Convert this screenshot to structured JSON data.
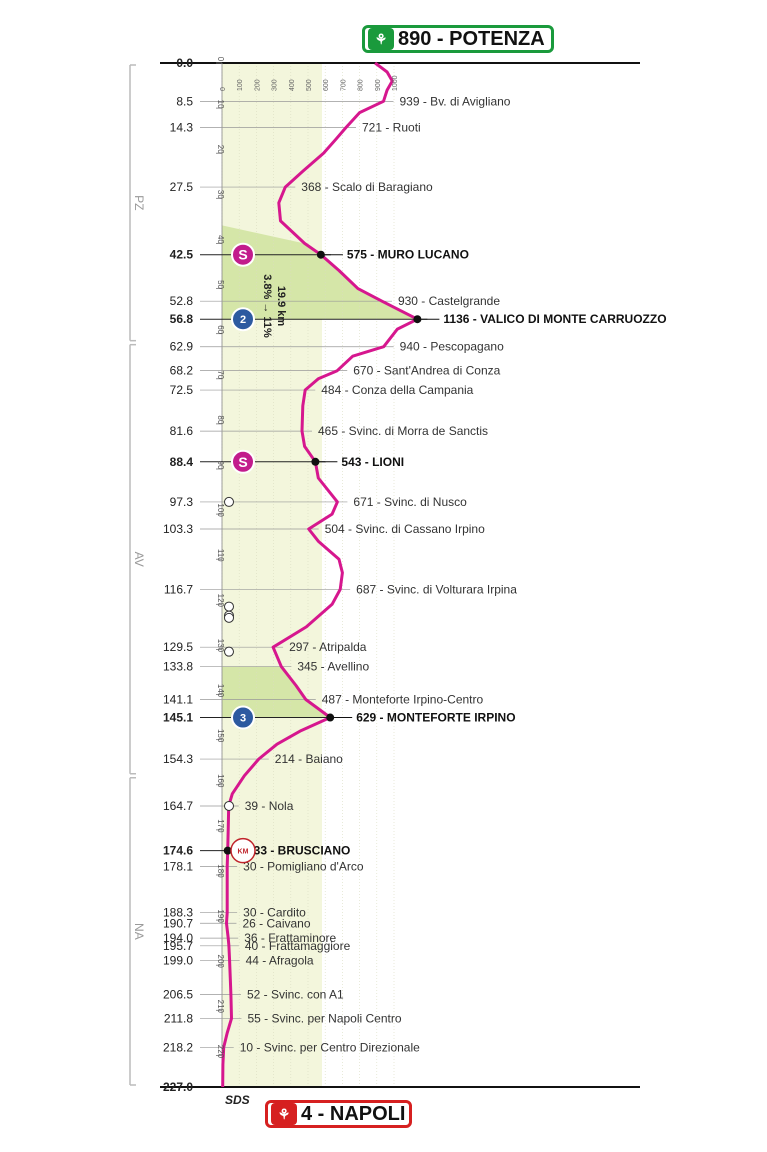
{
  "start_badge": {
    "label": "890 - POTENZA",
    "color": "#1a9a3c",
    "icon": "rider-icon"
  },
  "finish_badge": {
    "label": "4 - NAPOLI",
    "color": "#d62020",
    "icon": "rider-icon"
  },
  "sds_label": "SDS",
  "climb_annotation": {
    "length": "19.9 km",
    "gradient": "3.8% → 11%"
  },
  "colors": {
    "profile": "#d6178e",
    "background": "#f3f6dc",
    "climb_shade": "#d5e6a8",
    "sprint": "#c21c8c",
    "kom": "#2d5aa0"
  },
  "chart_data": {
    "type": "area",
    "orientation": "vertical",
    "x_label": "",
    "y_label": "",
    "km_axis_range": [
      0,
      227
    ],
    "altitude_axis_range": [
      0,
      1000
    ],
    "altitude_ticks": [
      "0",
      "100",
      "200",
      "300",
      "400",
      "500",
      "600",
      "700",
      "800",
      "900",
      "1000"
    ],
    "km_ticks": [
      "0",
      "10",
      "20",
      "30",
      "40",
      "50",
      "60",
      "70",
      "80",
      "90",
      "100",
      "110",
      "120",
      "130",
      "140",
      "150",
      "160",
      "170",
      "180",
      "190",
      "200",
      "210",
      "220"
    ],
    "regions": [
      {
        "name": "PZ",
        "from_km": 0,
        "to_km": 62
      },
      {
        "name": "AV",
        "from_km": 62,
        "to_km": 158
      },
      {
        "name": "NA",
        "from_km": 158,
        "to_km": 227
      }
    ],
    "climb_zones": [
      {
        "from_km": 36,
        "to_km": 56.8
      },
      {
        "from_km": 133.8,
        "to_km": 145.1
      }
    ],
    "profile": [
      [
        0,
        890
      ],
      [
        2,
        960
      ],
      [
        4,
        990
      ],
      [
        6,
        960
      ],
      [
        8.5,
        939
      ],
      [
        11,
        800
      ],
      [
        14.3,
        721
      ],
      [
        17,
        660
      ],
      [
        20,
        590
      ],
      [
        24,
        470
      ],
      [
        27.5,
        368
      ],
      [
        31,
        330
      ],
      [
        35,
        340
      ],
      [
        40,
        480
      ],
      [
        42.5,
        575
      ],
      [
        46,
        680
      ],
      [
        50,
        790
      ],
      [
        52.8,
        930
      ],
      [
        56.8,
        1136
      ],
      [
        59,
        1020
      ],
      [
        62.9,
        940
      ],
      [
        65,
        760
      ],
      [
        68.2,
        670
      ],
      [
        70,
        560
      ],
      [
        72.5,
        484
      ],
      [
        76,
        470
      ],
      [
        81.6,
        465
      ],
      [
        85,
        480
      ],
      [
        88.4,
        543
      ],
      [
        92,
        560
      ],
      [
        97.3,
        671
      ],
      [
        100,
        640
      ],
      [
        103.3,
        504
      ],
      [
        106,
        560
      ],
      [
        110,
        680
      ],
      [
        113,
        700
      ],
      [
        116.7,
        687
      ],
      [
        120,
        640
      ],
      [
        125,
        490
      ],
      [
        129.5,
        297
      ],
      [
        133.8,
        345
      ],
      [
        138,
        430
      ],
      [
        141.1,
        487
      ],
      [
        145.1,
        629
      ],
      [
        148,
        460
      ],
      [
        151,
        320
      ],
      [
        154.3,
        214
      ],
      [
        158,
        130
      ],
      [
        162,
        60
      ],
      [
        164.7,
        39
      ],
      [
        170,
        36
      ],
      [
        174.6,
        33
      ],
      [
        178.1,
        30
      ],
      [
        185,
        30
      ],
      [
        188.3,
        30
      ],
      [
        190.7,
        26
      ],
      [
        194.0,
        36
      ],
      [
        195.7,
        40
      ],
      [
        199.0,
        44
      ],
      [
        203,
        48
      ],
      [
        206.5,
        52
      ],
      [
        211.8,
        55
      ],
      [
        215,
        30
      ],
      [
        218.2,
        10
      ],
      [
        222,
        5
      ],
      [
        227,
        4
      ]
    ],
    "waypoints": [
      {
        "km": 0.0,
        "km_label": "0.0",
        "altitude": 890,
        "label": "",
        "major": true
      },
      {
        "km": 8.5,
        "km_label": "8.5",
        "altitude": 939,
        "label": "939 - Bv. di Avigliano",
        "major": false
      },
      {
        "km": 14.3,
        "km_label": "14.3",
        "altitude": 721,
        "label": "721 - Ruoti",
        "major": false
      },
      {
        "km": 27.5,
        "km_label": "27.5",
        "altitude": 368,
        "label": "368 - Scalo di Baragiano",
        "major": false
      },
      {
        "km": 42.5,
        "km_label": "42.5",
        "altitude": 575,
        "label": "575 - MURO LUCANO",
        "major": true,
        "marker": "sprint"
      },
      {
        "km": 52.8,
        "km_label": "52.8",
        "altitude": 930,
        "label": "930 - Castelgrande",
        "major": false
      },
      {
        "km": 56.8,
        "km_label": "56.8",
        "altitude": 1136,
        "label": "1136 - VALICO DI MONTE CARRUOZZO",
        "major": true,
        "marker": "kom2"
      },
      {
        "km": 62.9,
        "km_label": "62.9",
        "altitude": 940,
        "label": "940 - Pescopagano",
        "major": false
      },
      {
        "km": 68.2,
        "km_label": "68.2",
        "altitude": 670,
        "label": "670 - Sant'Andrea di Conza",
        "major": false
      },
      {
        "km": 72.5,
        "km_label": "72.5",
        "altitude": 484,
        "label": "484 - Conza della Campania",
        "major": false
      },
      {
        "km": 81.6,
        "km_label": "81.6",
        "altitude": 465,
        "label": "465 - Svinc. di Morra de Sanctis",
        "major": false
      },
      {
        "km": 88.4,
        "km_label": "88.4",
        "altitude": 543,
        "label": "543 - LIONI",
        "major": true,
        "marker": "sprint"
      },
      {
        "km": 97.3,
        "km_label": "97.3",
        "altitude": 671,
        "label": "671 - Svinc. di Nusco",
        "major": false
      },
      {
        "km": 103.3,
        "km_label": "103.3",
        "altitude": 504,
        "label": "504 - Svinc. di Cassano Irpino",
        "major": false
      },
      {
        "km": 116.7,
        "km_label": "116.7",
        "altitude": 687,
        "label": "687 - Svinc. di Volturara Irpina",
        "major": false
      },
      {
        "km": 129.5,
        "km_label": "129.5",
        "altitude": 297,
        "label": "297 - Atripalda",
        "major": false
      },
      {
        "km": 133.8,
        "km_label": "133.8",
        "altitude": 345,
        "label": "345 - Avellino",
        "major": false
      },
      {
        "km": 141.1,
        "km_label": "141.1",
        "altitude": 487,
        "label": "487 - Monteforte Irpino-Centro",
        "major": false
      },
      {
        "km": 145.1,
        "km_label": "145.1",
        "altitude": 629,
        "label": "629 - MONTEFORTE IRPINO",
        "major": true,
        "marker": "kom3"
      },
      {
        "km": 154.3,
        "km_label": "154.3",
        "altitude": 214,
        "label": "214 - Baiano",
        "major": false
      },
      {
        "km": 164.7,
        "km_label": "164.7",
        "altitude": 39,
        "label": "39 - Nola",
        "major": false
      },
      {
        "km": 174.6,
        "km_label": "174.6",
        "altitude": 33,
        "label": "33 - BRUSCIANO",
        "major": true,
        "marker": "redbull"
      },
      {
        "km": 178.1,
        "km_label": "178.1",
        "altitude": 30,
        "label": "30 - Pomigliano d'Arco",
        "major": false
      },
      {
        "km": 188.3,
        "km_label": "188.3",
        "altitude": 30,
        "label": "30 - Cardito",
        "major": false
      },
      {
        "km": 190.7,
        "km_label": "190.7",
        "altitude": 26,
        "label": "26 - Caivano",
        "major": false
      },
      {
        "km": 194.0,
        "km_label": "194.0",
        "altitude": 36,
        "label": "36 - Frattaminore",
        "major": false
      },
      {
        "km": 195.7,
        "km_label": "195.7",
        "altitude": 40,
        "label": "40 - Frattamaggiore",
        "major": false
      },
      {
        "km": 199.0,
        "km_label": "199.0",
        "altitude": 44,
        "label": "44 - Afragola",
        "major": false
      },
      {
        "km": 206.5,
        "km_label": "206.5",
        "altitude": 52,
        "label": "52 - Svinc. con A1",
        "major": false
      },
      {
        "km": 211.8,
        "km_label": "211.8",
        "altitude": 55,
        "label": "55 - Svinc. per Napoli Centro",
        "major": false
      },
      {
        "km": 218.2,
        "km_label": "218.2",
        "altitude": 10,
        "label": "10 - Svinc. per Centro Direzionale",
        "major": false
      },
      {
        "km": 227.0,
        "km_label": "227.0",
        "altitude": 4,
        "label": "",
        "major": true
      }
    ],
    "small_icons": [
      {
        "km": 97.3,
        "type": "tunnel"
      },
      {
        "km": 120.5,
        "type": "tunnel"
      },
      {
        "km": 120.5,
        "type": "tunnel"
      },
      {
        "km": 123,
        "type": "tunnel"
      },
      {
        "km": 130.5,
        "type": "railway-crossing"
      },
      {
        "km": 164.7,
        "type": "railway-crossing"
      }
    ]
  }
}
